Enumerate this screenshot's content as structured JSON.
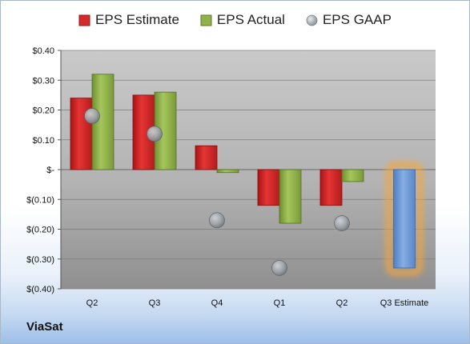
{
  "company": "ViaSat",
  "colors": {
    "estimate": "#d42a2a",
    "actual": "#8fb24a",
    "gaap": "#9aa0a6",
    "highlight_estimate": "#6a98d6",
    "highlight_glow": "#f6a63a"
  },
  "chart_data": {
    "type": "bar",
    "title": "",
    "xlabel": "",
    "ylabel": "",
    "categories": [
      "Q2",
      "Q3",
      "Q4",
      "Q1",
      "Q2",
      "Q3 Estimate"
    ],
    "series": [
      {
        "name": "EPS Estimate",
        "kind": "bar",
        "values": [
          0.24,
          0.25,
          0.08,
          -0.12,
          -0.12,
          -0.33
        ]
      },
      {
        "name": "EPS Actual",
        "kind": "bar",
        "values": [
          0.32,
          0.26,
          -0.01,
          -0.18,
          -0.04,
          null
        ]
      },
      {
        "name": "EPS GAAP",
        "kind": "point",
        "values": [
          0.18,
          0.12,
          -0.17,
          -0.33,
          -0.18,
          null
        ]
      }
    ],
    "ylim": [
      -0.4,
      0.4
    ],
    "yticks": [
      0.4,
      0.3,
      0.2,
      0.1,
      0.0,
      -0.1,
      -0.2,
      -0.3,
      -0.4
    ],
    "ytick_labels": [
      "$0.40",
      "$0.30",
      "$0.20",
      "$0.10",
      "$-",
      "$(0.10)",
      "$(0.20)",
      "$(0.30)",
      "$(0.40)"
    ],
    "grid": true,
    "legend": "top-center",
    "highlight_category": "Q3 Estimate"
  }
}
